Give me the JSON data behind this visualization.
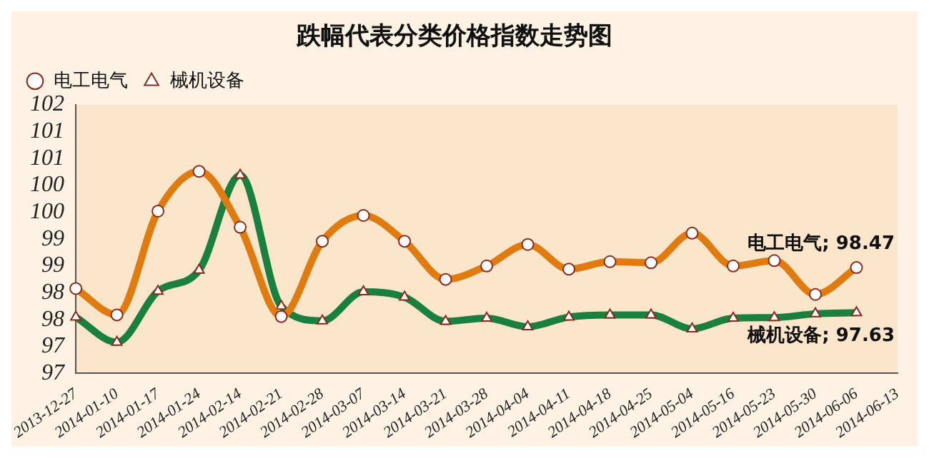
{
  "chart_data": {
    "type": "line",
    "title": "跌幅代表分类价格指数走势图",
    "categories": [
      "2013-12-27",
      "2014-01-10",
      "2014-01-17",
      "2014-01-24",
      "2014-02-14",
      "2014-02-21",
      "2014-02-28",
      "2014-03-07",
      "2014-03-14",
      "2014-03-21",
      "2014-03-28",
      "2014-04-04",
      "2014-04-11",
      "2014-04-18",
      "2014-04-25",
      "2014-05-04",
      "2014-05-16",
      "2014-05-23",
      "2014-05-30",
      "2014-06-06",
      "2014-06-13"
    ],
    "series": [
      {
        "name": "电工电气",
        "color": "#e07b10",
        "marker": "circle",
        "values": [
          98.08,
          97.59,
          99.52,
          100.26,
          99.22,
          97.56,
          98.96,
          99.44,
          98.96,
          98.25,
          98.5,
          98.9,
          98.44,
          98.58,
          98.56,
          99.11,
          98.5,
          98.6,
          97.97,
          98.47,
          null
        ]
      },
      {
        "name": "械机设备",
        "color": "#1a8040",
        "marker": "triangle",
        "values": [
          97.55,
          97.08,
          98.03,
          98.42,
          100.19,
          97.75,
          97.48,
          98.02,
          97.92,
          97.47,
          97.53,
          97.37,
          97.55,
          97.59,
          97.59,
          97.33,
          97.53,
          97.54,
          97.61,
          97.63,
          null
        ]
      }
    ],
    "ylim": [
      96.5,
      101.5
    ],
    "yticks": [
      {
        "value": 96.5,
        "label": "97"
      },
      {
        "value": 97,
        "label": "97"
      },
      {
        "value": 97.5,
        "label": "98"
      },
      {
        "value": 98,
        "label": "98"
      },
      {
        "value": 98.5,
        "label": "99"
      },
      {
        "value": 99,
        "label": "99"
      },
      {
        "value": 99.5,
        "label": "100"
      },
      {
        "value": 100,
        "label": "100"
      },
      {
        "value": 100.5,
        "label": "101"
      },
      {
        "value": 101,
        "label": "101"
      },
      {
        "value": 101.5,
        "label": "102"
      }
    ],
    "annotations": [
      {
        "text": "电工电气; 98.47",
        "x": "2014-06-06",
        "y": 98.47
      },
      {
        "text": "械机设备; 97.63",
        "x": "2014-06-06",
        "y": 97.63
      }
    ],
    "legend": "top left",
    "grid": false,
    "line_style": "solid"
  }
}
